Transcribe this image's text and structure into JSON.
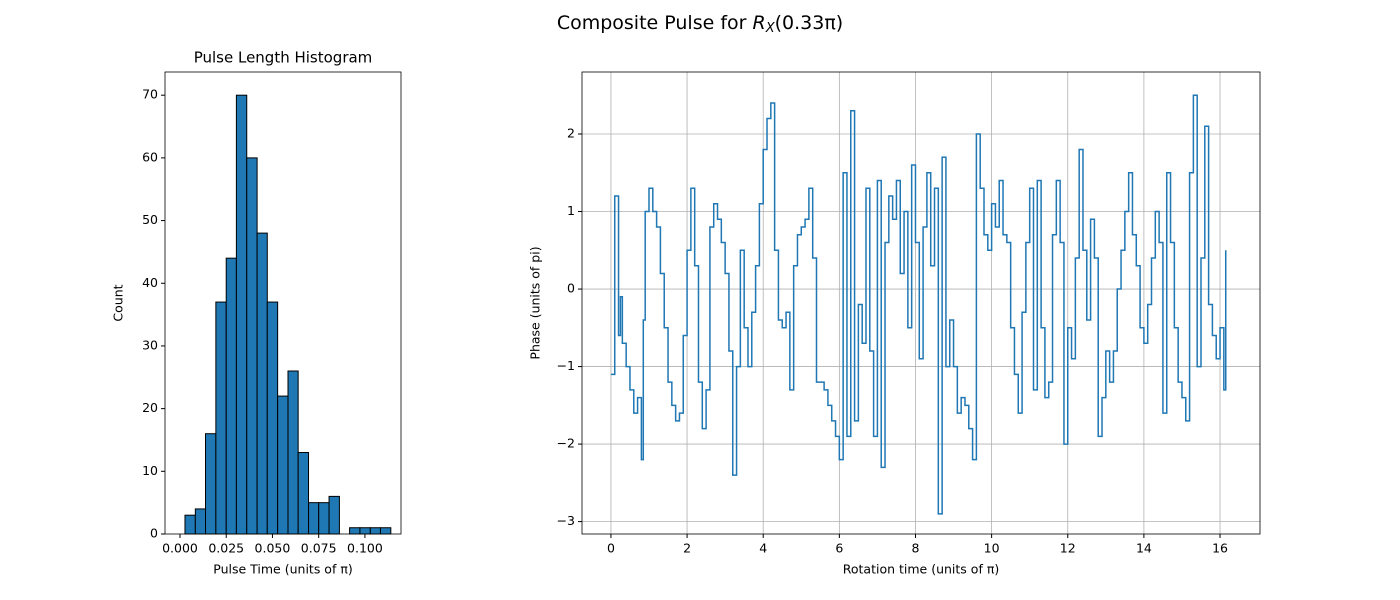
{
  "title": {
    "text": "Composite Pulse for ",
    "symbol": "R",
    "subscript": "X",
    "argument": "(0.33π)"
  },
  "chart_data": [
    {
      "type": "histogram",
      "title": "Pulse Length Histogram",
      "xlabel": "Pulse Time (units of π)",
      "ylabel": "Count",
      "color": "#1f77b4",
      "edgecolor": "#000000",
      "bins": [
        0.0027,
        0.0083,
        0.0138,
        0.0194,
        0.025,
        0.0305,
        0.0361,
        0.0417,
        0.0472,
        0.0528,
        0.0584,
        0.0639,
        0.0695,
        0.075,
        0.0806,
        0.0862,
        0.0917,
        0.0973,
        0.1029,
        0.1084,
        0.114
      ],
      "values": [
        3,
        4,
        16,
        37,
        44,
        70,
        60,
        48,
        37,
        22,
        26,
        13,
        5,
        5,
        6,
        0,
        1,
        1,
        1,
        1
      ],
      "xlim": [
        -0.0081,
        0.1195
      ],
      "ylim": [
        0,
        73.7
      ],
      "xticks": [
        {
          "value": 0,
          "label": "0.000"
        },
        {
          "value": 0.025,
          "label": "0.025"
        },
        {
          "value": 0.05,
          "label": "0.050"
        },
        {
          "value": 0.075,
          "label": "0.075"
        },
        {
          "value": 0.1,
          "label": "0.100"
        }
      ],
      "yticks": [
        0,
        10,
        20,
        30,
        40,
        50,
        60,
        70
      ],
      "grid": false
    },
    {
      "type": "step",
      "xlabel": "Rotation time (units of π)",
      "ylabel": "Phase (units of pi)",
      "color": "#1f77b4",
      "x": [
        0,
        0.1,
        0.2,
        0.25,
        0.3,
        0.4,
        0.5,
        0.6,
        0.7,
        0.8,
        0.85,
        0.9,
        1.0,
        1.1,
        1.2,
        1.3,
        1.4,
        1.5,
        1.6,
        1.7,
        1.8,
        1.9,
        2.0,
        2.1,
        2.2,
        2.3,
        2.4,
        2.5,
        2.6,
        2.7,
        2.8,
        2.9,
        3.0,
        3.1,
        3.2,
        3.3,
        3.4,
        3.5,
        3.6,
        3.7,
        3.8,
        3.9,
        4.0,
        4.1,
        4.2,
        4.3,
        4.4,
        4.5,
        4.6,
        4.7,
        4.8,
        4.9,
        5.0,
        5.1,
        5.2,
        5.3,
        5.4,
        5.5,
        5.6,
        5.7,
        5.8,
        5.9,
        6.0,
        6.1,
        6.2,
        6.3,
        6.4,
        6.5,
        6.6,
        6.7,
        6.8,
        6.9,
        7.0,
        7.1,
        7.2,
        7.3,
        7.4,
        7.5,
        7.6,
        7.7,
        7.8,
        7.9,
        8.0,
        8.1,
        8.2,
        8.3,
        8.4,
        8.5,
        8.6,
        8.7,
        8.8,
        8.9,
        9.0,
        9.1,
        9.2,
        9.3,
        9.4,
        9.5,
        9.6,
        9.7,
        9.8,
        9.9,
        10.0,
        10.1,
        10.2,
        10.3,
        10.4,
        10.5,
        10.6,
        10.7,
        10.8,
        10.9,
        11.0,
        11.1,
        11.2,
        11.3,
        11.4,
        11.5,
        11.6,
        11.7,
        11.8,
        11.9,
        12.0,
        12.1,
        12.2,
        12.3,
        12.4,
        12.5,
        12.6,
        12.7,
        12.8,
        12.9,
        13.0,
        13.1,
        13.2,
        13.3,
        13.4,
        13.5,
        13.6,
        13.7,
        13.8,
        13.9,
        14.0,
        14.1,
        14.2,
        14.3,
        14.4,
        14.5,
        14.6,
        14.7,
        14.8,
        14.9,
        15.0,
        15.1,
        15.2,
        15.3,
        15.4,
        15.5,
        15.6,
        15.7,
        15.8,
        15.9,
        16.0,
        16.1,
        16.15
      ],
      "values": [
        -1.1,
        1.2,
        -0.6,
        -0.1,
        -0.7,
        -1.0,
        -1.3,
        -1.6,
        -1.4,
        -2.2,
        -0.4,
        1.0,
        1.3,
        1.0,
        0.8,
        0.2,
        -0.5,
        -1.2,
        -1.5,
        -1.7,
        -1.6,
        -0.6,
        0.5,
        1.3,
        0.3,
        -1.2,
        -1.8,
        -1.3,
        0.8,
        1.1,
        0.9,
        0.6,
        0.2,
        -0.8,
        -2.4,
        -1.0,
        0.5,
        -0.5,
        -1.0,
        -0.3,
        0.3,
        1.1,
        1.8,
        2.2,
        2.4,
        0.5,
        -0.4,
        -0.5,
        -0.3,
        -1.3,
        0.3,
        0.7,
        0.8,
        0.9,
        1.3,
        0.4,
        -1.2,
        -1.2,
        -1.3,
        -1.5,
        -1.7,
        -1.9,
        -2.2,
        1.5,
        -1.9,
        2.3,
        -1.7,
        -0.2,
        -0.7,
        1.3,
        -0.8,
        -1.9,
        1.4,
        -2.3,
        0.6,
        1.2,
        0.9,
        1.4,
        0.2,
        1.0,
        -0.5,
        1.6,
        0.6,
        -0.9,
        0.8,
        1.5,
        0.3,
        1.3,
        -2.9,
        1.7,
        -1.0,
        -0.4,
        -1.0,
        -1.6,
        -1.4,
        -1.5,
        -1.8,
        -2.2,
        2.0,
        1.3,
        0.7,
        0.5,
        1.1,
        0.8,
        1.4,
        0.7,
        0.6,
        -0.5,
        -1.1,
        -1.6,
        -0.3,
        0.6,
        1.3,
        -1.3,
        1.4,
        -0.5,
        -1.4,
        -1.2,
        0.7,
        1.4,
        0.6,
        -2.0,
        -0.5,
        -0.9,
        0.4,
        1.8,
        0.5,
        -0.4,
        0.9,
        0.4,
        -1.9,
        -1.4,
        -0.8,
        -1.2,
        -0.8,
        0.0,
        0.5,
        1.0,
        1.5,
        0.7,
        0.3,
        -0.5,
        -0.7,
        -0.2,
        0.4,
        1.0,
        0.6,
        -1.6,
        1.5,
        0.6,
        -0.5,
        -1.2,
        -1.4,
        -1.7,
        1.5,
        2.5,
        -1.0,
        0.4,
        2.1,
        -0.2,
        -0.6,
        -0.9,
        -0.5,
        -1.3,
        0.5
      ],
      "xlim": [
        -0.76,
        17.05
      ],
      "ylim": [
        -3.16,
        2.8
      ],
      "xticks": [
        0,
        2,
        4,
        6,
        8,
        10,
        12,
        14,
        16
      ],
      "yticks": [
        {
          "value": -3,
          "label": "−3"
        },
        {
          "value": -2,
          "label": "−2"
        },
        {
          "value": -1,
          "label": "−1"
        },
        0,
        1,
        2
      ],
      "grid": true
    }
  ]
}
